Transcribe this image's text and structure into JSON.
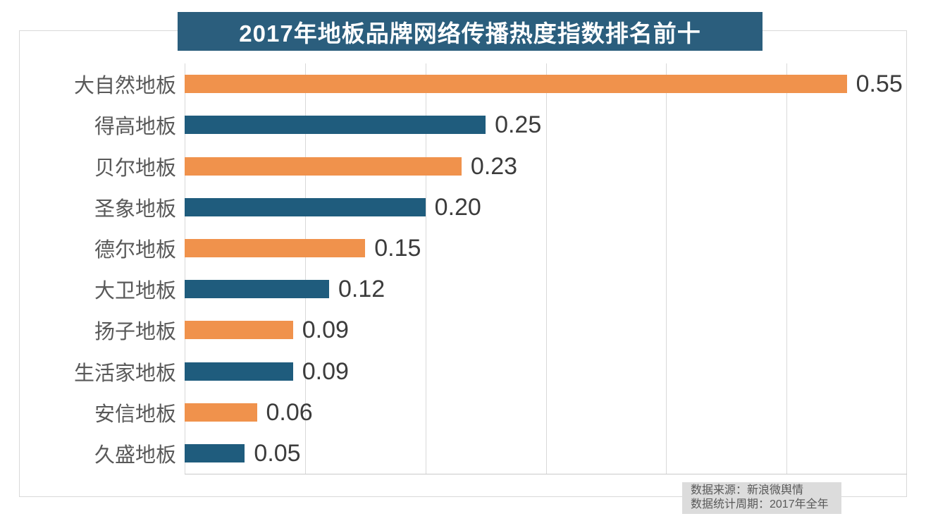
{
  "chart": {
    "title": "2017年地板品牌网络传播热度指数排名前十"
  },
  "note": {
    "line1": "数据来源：新浪微舆情",
    "line2": "数据统计周期：2017年全年"
  },
  "colors": {
    "banner_bg": "#2b5e7d",
    "bar_orange": "#f0924c",
    "bar_blue": "#1f5c7d",
    "gridline": "#d9d9d9",
    "axis_line": "#c9c9c9",
    "category_text": "#595959",
    "value_text": "#3c3c3c",
    "note_bg": "#dcdcdc",
    "note_text": "#595959",
    "title_text": "#ffffff"
  },
  "chart_data": {
    "type": "bar",
    "orientation": "horizontal",
    "title": "2017年地板品牌网络传播热度指数排名前十",
    "categories": [
      "大自然地板",
      "得高地板",
      "贝尔地板",
      "圣象地板",
      "德尔地板",
      "大卫地板",
      "扬子地板",
      "生活家地板",
      "安信地板",
      "久盛地板"
    ],
    "values": [
      0.55,
      0.25,
      0.23,
      0.2,
      0.15,
      0.12,
      0.09,
      0.09,
      0.06,
      0.05
    ],
    "value_labels": [
      "0.55",
      "0.25",
      "0.23",
      "0.20",
      "0.15",
      "0.12",
      "0.09",
      "0.09",
      "0.06",
      "0.05"
    ],
    "bar_colors_alternating": [
      "#f0924c",
      "#1f5c7d"
    ],
    "xlabel": "",
    "ylabel": "",
    "xlim": [
      0,
      0.6
    ],
    "gridline_step": 0.1,
    "grid": true,
    "legend": false,
    "data_labels": true,
    "source_note": [
      "数据来源：新浪微舆情",
      "数据统计周期：2017年全年"
    ]
  }
}
